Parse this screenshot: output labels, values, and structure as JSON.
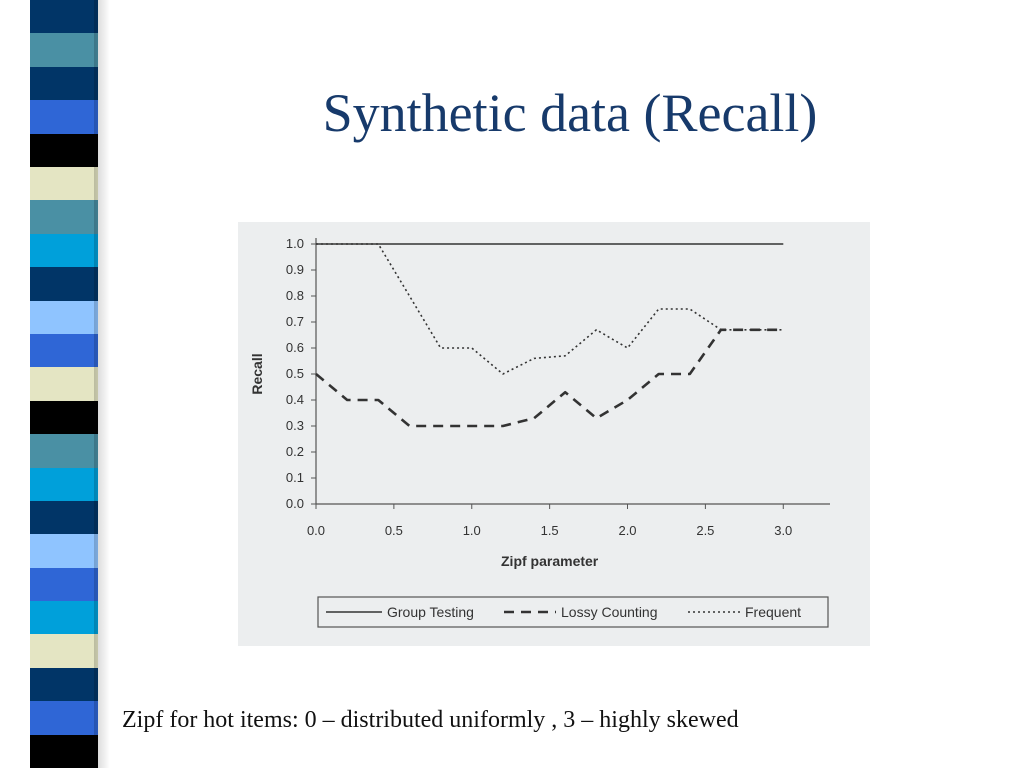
{
  "slide": {
    "title": "Synthetic data (Recall)",
    "caption": "Zipf for hot items: 0 – distributed uniformly , 3 – highly skewed"
  },
  "stripe_colors": [
    "#013567",
    "#4a90a4",
    "#013567",
    "#2f66d6",
    "#000000",
    "#e4e5c3",
    "#4a90a4",
    "#00a0da",
    "#013567",
    "#8fc4ff",
    "#2f66d6",
    "#e4e5c3",
    "#000000",
    "#4a90a4",
    "#00a0da",
    "#013567",
    "#8fc4ff",
    "#2f66d6",
    "#00a0da",
    "#e4e5c3",
    "#013567",
    "#2f66d6",
    "#000000"
  ],
  "chart_data": {
    "type": "line",
    "xlabel": "Zipf parameter",
    "ylabel": "Recall",
    "xlim": [
      0,
      3.3
    ],
    "ylim": [
      0,
      1.0
    ],
    "x_ticks": [
      "0.0",
      "0.5",
      "1.0",
      "1.5",
      "2.0",
      "2.5",
      "3.0"
    ],
    "y_ticks": [
      "0.0",
      "0.1",
      "0.2",
      "0.3",
      "0.4",
      "0.5",
      "0.6",
      "0.7",
      "0.8",
      "0.9",
      "1.0"
    ],
    "legend_position": "bottom",
    "series": [
      {
        "name": "Group Testing",
        "style": "solid",
        "x": [
          0.0,
          3.0
        ],
        "y": [
          1.0,
          1.0
        ]
      },
      {
        "name": "Lossy Counting",
        "style": "dashed",
        "x": [
          0.0,
          0.2,
          0.4,
          0.6,
          0.8,
          1.0,
          1.2,
          1.4,
          1.6,
          1.8,
          2.0,
          2.2,
          2.4,
          2.6,
          2.8,
          3.0
        ],
        "y": [
          0.5,
          0.4,
          0.4,
          0.3,
          0.3,
          0.3,
          0.3,
          0.33,
          0.43,
          0.33,
          0.4,
          0.5,
          0.5,
          0.67,
          0.67,
          0.67
        ]
      },
      {
        "name": "Frequent",
        "style": "dotted",
        "x": [
          0.0,
          0.2,
          0.4,
          0.6,
          0.8,
          1.0,
          1.2,
          1.4,
          1.6,
          1.8,
          2.0,
          2.2,
          2.4,
          2.6,
          2.8,
          3.0
        ],
        "y": [
          1.0,
          1.0,
          1.0,
          0.8,
          0.6,
          0.6,
          0.5,
          0.56,
          0.57,
          0.67,
          0.6,
          0.75,
          0.75,
          0.67,
          0.67,
          0.67
        ]
      }
    ]
  }
}
